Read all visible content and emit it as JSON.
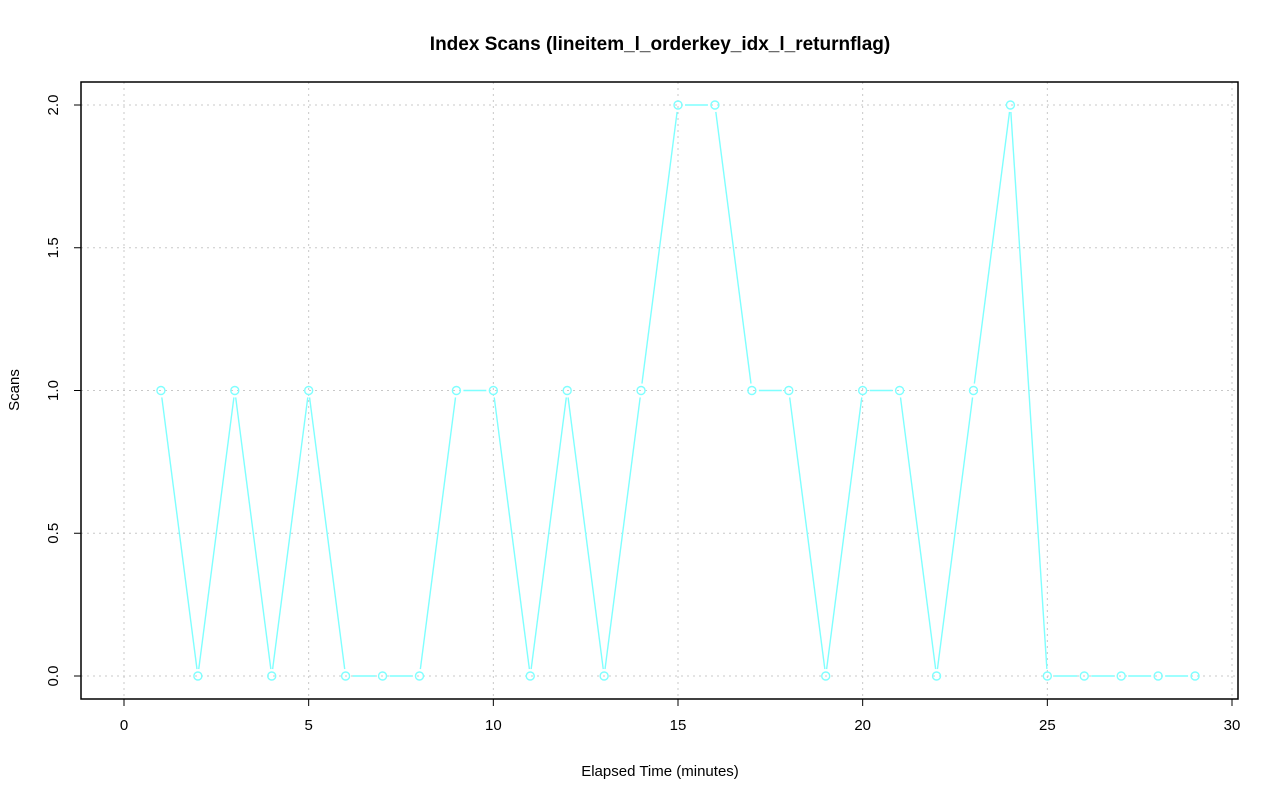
{
  "chart_data": {
    "type": "line",
    "title": "Index Scans (lineitem_l_orderkey_idx_l_returnflag)",
    "xlabel": "Elapsed Time (minutes)",
    "ylabel": "Scans",
    "xlim": [
      0,
      30
    ],
    "ylim": [
      0,
      2
    ],
    "x_ticks": [
      "0",
      "5",
      "10",
      "15",
      "20",
      "25",
      "30"
    ],
    "y_ticks": [
      "0.0",
      "0.5",
      "1.0",
      "1.5",
      "2.0"
    ],
    "grid": true,
    "legend": "none",
    "series": [
      {
        "color": "#7fffff",
        "marker": "open-circle",
        "x": [
          1,
          2,
          3,
          4,
          5,
          6,
          7,
          8,
          9,
          10,
          11,
          12,
          13,
          14,
          15,
          16,
          17,
          18,
          19,
          20,
          21,
          22,
          23,
          24,
          25,
          26,
          27,
          28,
          29
        ],
        "y": [
          1,
          0,
          1,
          0,
          1,
          0,
          0,
          0,
          1,
          1,
          0,
          1,
          0,
          1,
          2,
          2,
          1,
          1,
          0,
          1,
          1,
          0,
          1,
          2,
          0,
          0,
          0,
          0,
          0
        ]
      }
    ]
  }
}
